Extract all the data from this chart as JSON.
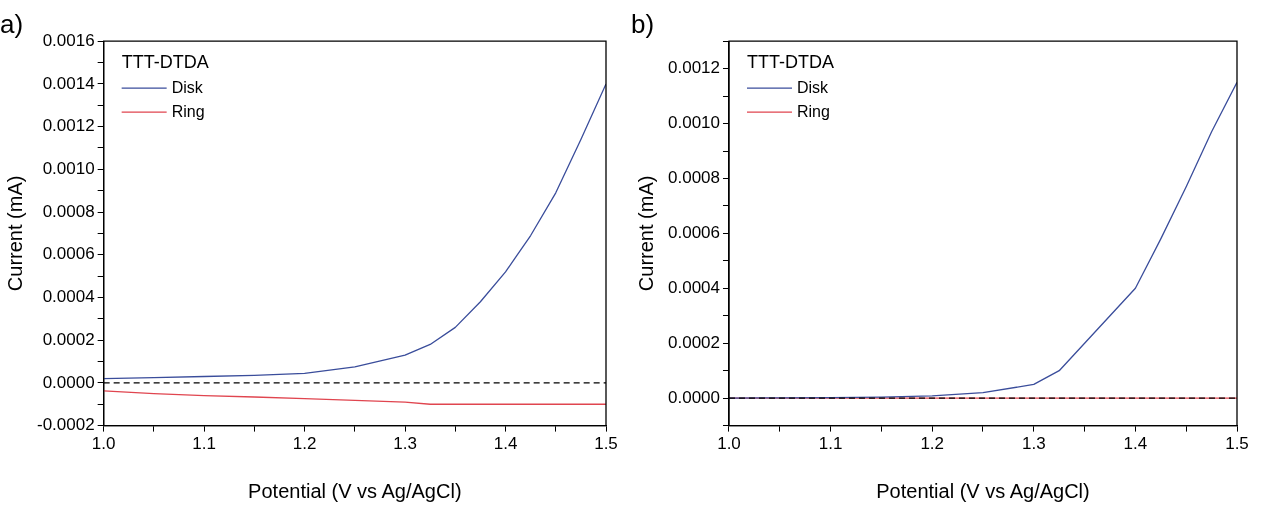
{
  "chart_data": [
    {
      "type": "line",
      "title": "a)",
      "xlabel": "Potential (V vs Ag/AgCl)",
      "ylabel": "Current (mA)",
      "legend_title": "TTT-DTDA",
      "legend": "top left",
      "grid": false,
      "marker": "none",
      "line_style": "solid",
      "xlim": [
        1.0,
        1.5
      ],
      "xticks": [
        {
          "value": 1.0,
          "label": "1.0"
        },
        {
          "value": 1.05,
          "label": null
        },
        {
          "value": 1.1,
          "label": "1.1"
        },
        {
          "value": 1.15,
          "label": null
        },
        {
          "value": 1.2,
          "label": "1.2"
        },
        {
          "value": 1.25,
          "label": null
        },
        {
          "value": 1.3,
          "label": "1.3"
        },
        {
          "value": 1.35,
          "label": null
        },
        {
          "value": 1.4,
          "label": "1.4"
        },
        {
          "value": 1.45,
          "label": null
        },
        {
          "value": 1.5,
          "label": "1.5"
        }
      ],
      "ylim": [
        -0.0002,
        0.0016
      ],
      "yticks": [
        {
          "value": -0.0002,
          "label": "-0.0002"
        },
        {
          "value": -0.0001,
          "label": null
        },
        {
          "value": 0,
          "label": "0.0000"
        },
        {
          "value": 0.0001,
          "label": null
        },
        {
          "value": 0.0002,
          "label": "0.0002"
        },
        {
          "value": 0.0003,
          "label": null
        },
        {
          "value": 0.0004,
          "label": "0.0004"
        },
        {
          "value": 0.0005,
          "label": null
        },
        {
          "value": 0.0006,
          "label": "0.0006"
        },
        {
          "value": 0.0007,
          "label": null
        },
        {
          "value": 0.0008,
          "label": "0.0008"
        },
        {
          "value": 0.0009,
          "label": null
        },
        {
          "value": 0.001,
          "label": "0.0010"
        },
        {
          "value": 0.0011,
          "label": null
        },
        {
          "value": 0.0012,
          "label": "0.0012"
        },
        {
          "value": 0.0013,
          "label": null
        },
        {
          "value": 0.0014,
          "label": "0.0014"
        },
        {
          "value": 0.0015,
          "label": null
        },
        {
          "value": 0.0016,
          "label": "0.0016"
        }
      ],
      "x": [
        1.0,
        1.05,
        1.1,
        1.15,
        1.2,
        1.25,
        1.3,
        1.325,
        1.35,
        1.375,
        1.4,
        1.425,
        1.45,
        1.475,
        1.5
      ],
      "series": [
        {
          "name": "Disk",
          "color": "#3a4d9b",
          "values": [
            2e-05,
            2.5e-05,
            3e-05,
            3.5e-05,
            4.5e-05,
            7.5e-05,
            0.00013,
            0.00018,
            0.00026,
            0.00038,
            0.00052,
            0.00069,
            0.00089,
            0.00114,
            0.0014
          ]
        },
        {
          "name": "Ring",
          "color": "#e0454f",
          "values": [
            -3.7e-05,
            -5e-05,
            -6e-05,
            -6.6e-05,
            -7.4e-05,
            -8.2e-05,
            -9e-05,
            -0.0001,
            -0.0001,
            -0.0001,
            -0.0001,
            -0.0001,
            -0.0001,
            -0.0001,
            -0.0001
          ]
        }
      ],
      "ref_lines": [
        {
          "axis": "y",
          "value": 0,
          "color": "#000000",
          "line_style": "dashed"
        }
      ]
    },
    {
      "type": "line",
      "title": "b)",
      "xlabel": "Potential (V vs Ag/AgCl)",
      "ylabel": "Current (mA)",
      "legend_title": "TTT-DTDA",
      "legend": "top left",
      "grid": false,
      "marker": "none",
      "line_style": "solid",
      "xlim": [
        1.0,
        1.5
      ],
      "xticks": [
        {
          "value": 1.0,
          "label": "1.0"
        },
        {
          "value": 1.05,
          "label": null
        },
        {
          "value": 1.1,
          "label": "1.1"
        },
        {
          "value": 1.15,
          "label": null
        },
        {
          "value": 1.2,
          "label": "1.2"
        },
        {
          "value": 1.25,
          "label": null
        },
        {
          "value": 1.3,
          "label": "1.3"
        },
        {
          "value": 1.35,
          "label": null
        },
        {
          "value": 1.4,
          "label": "1.4"
        },
        {
          "value": 1.45,
          "label": null
        },
        {
          "value": 1.5,
          "label": "1.5"
        }
      ],
      "ylim": [
        -0.0001,
        0.0013
      ],
      "yticks": [
        {
          "value": -0.0001,
          "label": null
        },
        {
          "value": 0,
          "label": "0.0000"
        },
        {
          "value": 0.0001,
          "label": null
        },
        {
          "value": 0.0002,
          "label": "0.0002"
        },
        {
          "value": 0.0003,
          "label": null
        },
        {
          "value": 0.0004,
          "label": "0.0004"
        },
        {
          "value": 0.0005,
          "label": null
        },
        {
          "value": 0.0006,
          "label": "0.0006"
        },
        {
          "value": 0.0007,
          "label": null
        },
        {
          "value": 0.0008,
          "label": "0.0008"
        },
        {
          "value": 0.0009,
          "label": null
        },
        {
          "value": 0.001,
          "label": "0.0010"
        },
        {
          "value": 0.0011,
          "label": null
        },
        {
          "value": 0.0012,
          "label": "0.0012"
        },
        {
          "value": 0.0013,
          "label": null
        }
      ],
      "x": [
        1.0,
        1.05,
        1.1,
        1.15,
        1.2,
        1.25,
        1.3,
        1.325,
        1.35,
        1.375,
        1.4,
        1.425,
        1.45,
        1.475,
        1.5
      ],
      "series": [
        {
          "name": "Disk",
          "color": "#3a4d9b",
          "values": [
            0,
            1e-06,
            2e-06,
            4e-06,
            8e-06,
            2e-05,
            5e-05,
            0.0001,
            0.0002,
            0.0003,
            0.0004,
            0.00058,
            0.00077,
            0.00097,
            0.00115
          ]
        },
        {
          "name": "Ring",
          "color": "#e0454f",
          "values": [
            0,
            0,
            0,
            0,
            0,
            0,
            0,
            0,
            0,
            0,
            0,
            0,
            0,
            0,
            0
          ]
        }
      ],
      "ref_lines": [
        {
          "axis": "y",
          "value": 0,
          "color": "#000000",
          "line_style": "dashed"
        }
      ]
    }
  ]
}
